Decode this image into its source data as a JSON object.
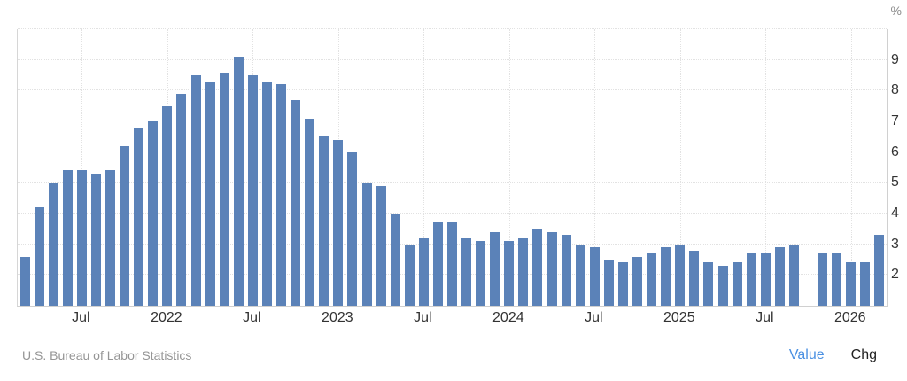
{
  "chart_data": {
    "type": "bar",
    "unit_label": "%",
    "bar_color": "#5b82b8",
    "ylim": [
      1,
      10
    ],
    "y_ticks": [
      2,
      3,
      4,
      5,
      6,
      7,
      8,
      9
    ],
    "grid_values": [
      2,
      3,
      4,
      5,
      6,
      7,
      8,
      9,
      10
    ],
    "x": [
      "Mar 2021",
      "Apr 2021",
      "May 2021",
      "Jun 2021",
      "Jul 2021",
      "Aug 2021",
      "Sep 2021",
      "Oct 2021",
      "Nov 2021",
      "Dec 2021",
      "Jan 2022",
      "Feb 2022",
      "Mar 2022",
      "Apr 2022",
      "May 2022",
      "Jun 2022",
      "Jul 2022",
      "Aug 2022",
      "Sep 2022",
      "Oct 2022",
      "Nov 2022",
      "Dec 2022",
      "Jan 2023",
      "Feb 2023",
      "Mar 2023",
      "Apr 2023",
      "May 2023",
      "Jun 2023",
      "Jul 2023",
      "Aug 2023",
      "Sep 2023",
      "Oct 2023",
      "Nov 2023",
      "Dec 2023",
      "Jan 2024",
      "Feb 2024",
      "Mar 2024",
      "Apr 2024",
      "May 2024",
      "Jun 2024",
      "Jul 2024",
      "Aug 2024",
      "Sep 2024",
      "Oct 2024",
      "Nov 2024",
      "Dec 2024",
      "Jan 2025",
      "Feb 2025",
      "Mar 2025",
      "Apr 2025",
      "May 2025",
      "Jun 2025",
      "Jul 2025",
      "Aug 2025",
      "Sep 2025",
      "Oct 2025",
      "Nov 2025",
      "Dec 2025",
      "Jan 2026",
      "Feb 2026",
      "Mar 2026"
    ],
    "values": [
      2.6,
      4.2,
      5.0,
      5.4,
      5.4,
      5.3,
      5.4,
      6.2,
      6.8,
      7.0,
      7.5,
      7.9,
      8.5,
      8.3,
      8.6,
      9.1,
      8.5,
      8.3,
      8.2,
      7.7,
      7.1,
      6.5,
      6.4,
      6.0,
      5.0,
      4.9,
      4.0,
      3.0,
      3.2,
      3.7,
      3.7,
      3.2,
      3.1,
      3.4,
      3.1,
      3.2,
      3.5,
      3.4,
      3.3,
      3.0,
      2.9,
      2.5,
      2.4,
      2.6,
      2.7,
      2.9,
      3.0,
      2.8,
      2.4,
      2.3,
      2.4,
      2.7,
      2.7,
      2.9,
      3.0,
      null,
      2.7,
      2.7,
      2.4,
      2.4,
      3.3
    ],
    "x_tick_marks": [
      {
        "index": 4,
        "label": "Jul"
      },
      {
        "index": 10,
        "label": "2022"
      },
      {
        "index": 16,
        "label": "Jul"
      },
      {
        "index": 22,
        "label": "2023"
      },
      {
        "index": 28,
        "label": "Jul"
      },
      {
        "index": 34,
        "label": "2024"
      },
      {
        "index": 40,
        "label": "Jul"
      },
      {
        "index": 46,
        "label": "2025"
      },
      {
        "index": 52,
        "label": "Jul"
      },
      {
        "index": 58,
        "label": "2026"
      }
    ],
    "grid": true,
    "legend_position": "bottom-right"
  },
  "footer": {
    "source": "U.S. Bureau of Labor Statistics",
    "value_label": "Value",
    "chg_label": "Chg",
    "value_color": "#4a90e2",
    "chg_color": "#222222"
  }
}
